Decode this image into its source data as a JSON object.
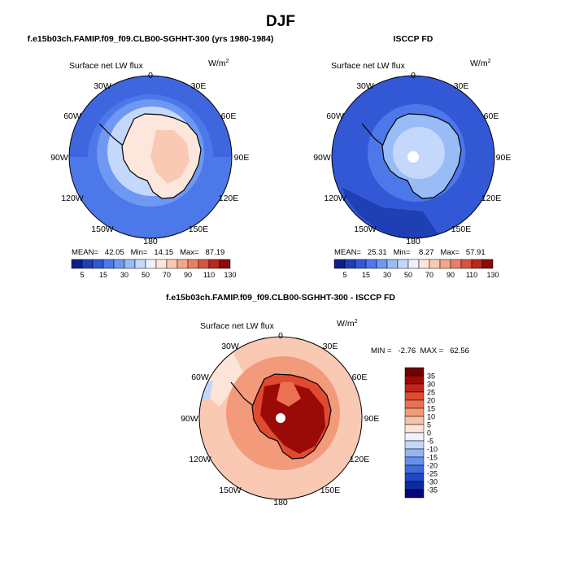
{
  "page_title": "DJF",
  "meridian_labels": [
    "0",
    "30E",
    "60E",
    "90E",
    "120E",
    "150E",
    "180",
    "150W",
    "120W",
    "90W",
    "60W",
    "30W"
  ],
  "palette_main": [
    "#0a1f8c",
    "#1f3fb5",
    "#3358d6",
    "#4d78ea",
    "#6f98f2",
    "#99bcf7",
    "#c3d8fb",
    "#eaf1fd",
    "#fde6dc",
    "#f9c9b4",
    "#f3a78a",
    "#e98064",
    "#d75442",
    "#b9271f",
    "#8c0a0a"
  ],
  "palette_diff": [
    "#06067a",
    "#0a2ca0",
    "#2148c6",
    "#3f6ae0",
    "#6790ee",
    "#93b5f6",
    "#c2d7fb",
    "#eef3fe",
    "#fde4d8",
    "#f8c3a8",
    "#f39a7a",
    "#ec7153",
    "#e04a2f",
    "#c2231a",
    "#9a0a06",
    "#6f0202"
  ],
  "panels": [
    {
      "title": "f.e15b03ch.FAMIP.f09_f09.CLB00-SGHHT-300 (yrs 1980-1984)",
      "variable": "Surface net LW flux",
      "units": "W/m",
      "units_sup": "2",
      "stats_text": "MEAN=   42.05   Min=   14.15   Max=   87.19",
      "stats": {
        "mean": 42.05,
        "min": 14.15,
        "max": 87.19
      },
      "colorbar_labels": [
        "5",
        "15",
        "30",
        "50",
        "70",
        "90",
        "110",
        "130"
      ]
    },
    {
      "title": "ISCCP FD",
      "variable": "Surface net LW flux",
      "units": "W/m",
      "units_sup": "2",
      "stats_text": "MEAN=   25.31   Min=    8.27   Max=   57.91",
      "stats": {
        "mean": 25.31,
        "min": 8.27,
        "max": 57.91
      },
      "colorbar_labels": [
        "5",
        "15",
        "30",
        "50",
        "70",
        "90",
        "110",
        "130"
      ]
    },
    {
      "title": "f.e15b03ch.FAMIP.f09_f09.CLB00-SGHHT-300 - ISCCP FD",
      "variable": "Surface net LW flux",
      "units": "W/m",
      "units_sup": "2",
      "stats_text": "MIN =   -2.76  MAX =   62.56",
      "stats": {
        "min": -2.76,
        "max": 62.56
      },
      "colorbar_labels": [
        "35",
        "30",
        "25",
        "20",
        "15",
        "10",
        "5",
        "0",
        "-5",
        "-10",
        "-15",
        "-20",
        "-25",
        "-30",
        "-35"
      ]
    }
  ]
}
